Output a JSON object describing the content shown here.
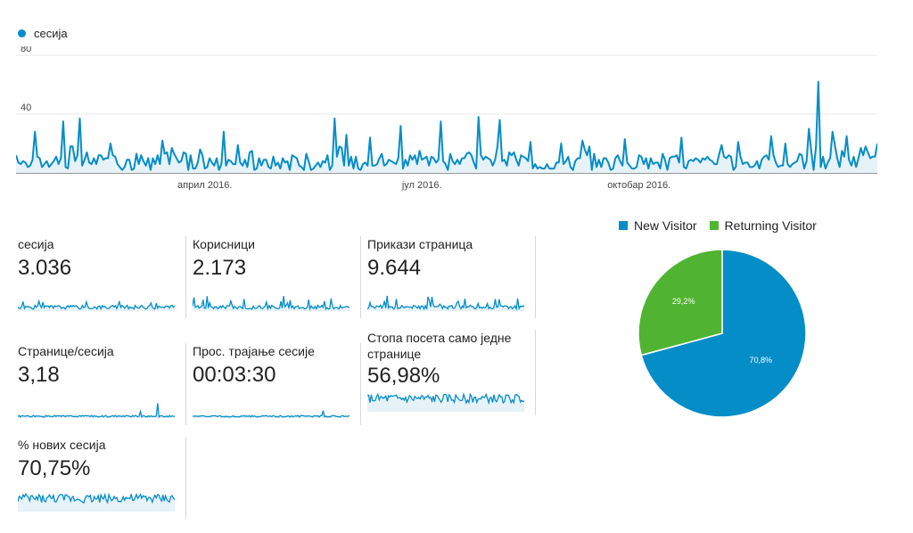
{
  "legend": {
    "label": "сесија",
    "color": "#058dc7"
  },
  "chart_data": [
    {
      "type": "area",
      "title": "",
      "series": [
        {
          "name": "сесија",
          "values": []
        }
      ],
      "y_ticks": [
        80,
        40
      ],
      "ylim": [
        0,
        80
      ],
      "x_tick_labels": [
        "април 2016.",
        "јул 2016.",
        "октобар 2016."
      ],
      "x_tick_positions": [
        80,
        172,
        264
      ],
      "n_days": 366
    },
    {
      "type": "pie",
      "legend": [
        "New Visitor",
        "Returning Visitor"
      ],
      "values": [
        70.8,
        29.2
      ],
      "labels": [
        "70,8%",
        "29,2%"
      ],
      "colors": [
        "#058dc7",
        "#50b432"
      ]
    }
  ],
  "metrics": [
    {
      "label": "сесија",
      "value": "3.036"
    },
    {
      "label": "Корисници",
      "value": "2.173"
    },
    {
      "label": "Прикази страница",
      "value": "9.644"
    },
    {
      "label": "Странице/сесија",
      "value": "3,18"
    },
    {
      "label": "Прос. трајање сесије",
      "value": "00:03:30"
    },
    {
      "label": "Стопа посета само једне странице",
      "value": "56,98%"
    },
    {
      "label": "% нових сесија",
      "value": "70,75%"
    }
  ]
}
